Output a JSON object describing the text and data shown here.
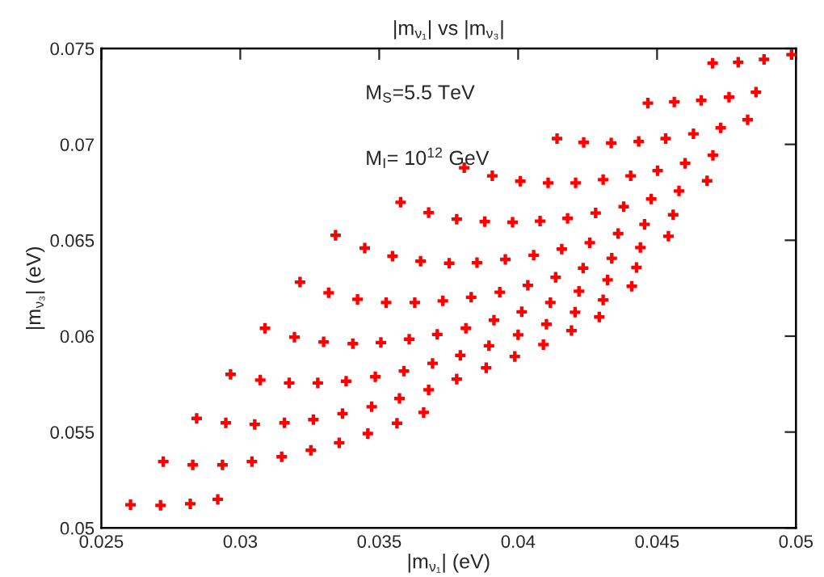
{
  "chart_data": {
    "type": "scatter",
    "title": "|m$_{ν₁}$| vs |m$_{ν₃}$|",
    "xlabel": "|m$_{ν₁}$| (eV)",
    "ylabel": "|m$_{ν₃}$| (eV)",
    "annotations": [
      "M$_{S}$=5.5 TeV",
      "M$_{I}$= 10$^{12}$ GeV"
    ],
    "xlim": [
      0.025,
      0.05
    ],
    "xticks": [
      0.025,
      0.03,
      0.035,
      0.04,
      0.045,
      0.05
    ],
    "ylim": [
      0.05,
      0.075
    ],
    "yticks": [
      0.05,
      0.055,
      0.06,
      0.065,
      0.07,
      0.075
    ],
    "grid": false,
    "legend": false,
    "marker": "cross",
    "series": [
      {
        "color": "#ff0000",
        "x": [
          0.02605,
          0.02713,
          0.0282,
          0.02919,
          0.02723,
          0.02829,
          0.02936,
          0.03042,
          0.03149,
          0.03254,
          0.03356,
          0.03459,
          0.03564,
          0.0366,
          0.02843,
          0.02948,
          0.03052,
          0.03159,
          0.03263,
          0.03368,
          0.03473,
          0.03573,
          0.03678,
          0.02965,
          0.03072,
          0.03176,
          0.03279,
          0.03381,
          0.03486,
          0.03589,
          0.03692,
          0.03089,
          0.03195,
          0.033,
          0.03405,
          0.03506,
          0.03608,
          0.03709,
          0.03215,
          0.03318,
          0.03422,
          0.03525,
          0.03628,
          0.03729,
          0.03831,
          0.03934,
          0.04035,
          0.04135,
          0.04322,
          0.04409,
          0.04219,
          0.04116,
          0.04306,
          0.04013,
          0.04205,
          0.04292,
          0.03913,
          0.04102,
          0.03812,
          0.04192,
          0.04,
          0.03895,
          0.04091,
          0.03792,
          0.03988,
          0.03885,
          0.03779,
          0.03577,
          0.03678,
          0.03343,
          0.03448,
          0.03548,
          0.03649,
          0.047,
          0.04792,
          0.04885,
          0.04984,
          0.04467,
          0.04562,
          0.04659,
          0.04759,
          0.04856,
          0.04826,
          0.04729,
          0.04631,
          0.04531,
          0.04434,
          0.04335,
          0.04236,
          0.0414,
          0.04701,
          0.04601,
          0.04502,
          0.04405,
          0.04306,
          0.04207,
          0.04108,
          0.04008,
          0.03907,
          0.03806,
          0.0468,
          0.04579,
          0.04479,
          0.0438,
          0.04279,
          0.04178,
          0.04079,
          0.0398,
          0.0388,
          0.03779,
          0.04558,
          0.04455,
          0.0436,
          0.04258,
          0.04157,
          0.04056,
          0.03954,
          0.03852,
          0.03752,
          0.04541,
          0.0444,
          0.04337,
          0.04234,
          0.04426
        ],
        "values": [
          0.05121,
          0.05118,
          0.05126,
          0.05149,
          0.05346,
          0.05329,
          0.05329,
          0.05346,
          0.05371,
          0.05405,
          0.05444,
          0.05492,
          0.05546,
          0.05602,
          0.05571,
          0.05548,
          0.0554,
          0.05548,
          0.05565,
          0.05596,
          0.05632,
          0.05675,
          0.0572,
          0.05801,
          0.05771,
          0.05756,
          0.05756,
          0.05765,
          0.05788,
          0.05818,
          0.05858,
          0.06041,
          0.05995,
          0.0597,
          0.05961,
          0.05967,
          0.05984,
          0.06009,
          0.06282,
          0.06226,
          0.06192,
          0.06175,
          0.06175,
          0.06184,
          0.06203,
          0.06229,
          0.06265,
          0.06307,
          0.06293,
          0.0626,
          0.06234,
          0.06175,
          0.06189,
          0.06127,
          0.06125,
          0.061,
          0.06083,
          0.06062,
          0.06041,
          0.06029,
          0.06007,
          0.0595,
          0.05956,
          0.059,
          0.05894,
          0.05835,
          0.05776,
          0.06698,
          0.06644,
          0.06526,
          0.06459,
          0.06417,
          0.06391,
          0.07423,
          0.07428,
          0.07443,
          0.07468,
          0.07215,
          0.07221,
          0.07229,
          0.07246,
          0.07272,
          0.07128,
          0.07086,
          0.07055,
          0.0703,
          0.07015,
          0.07007,
          0.0701,
          0.0703,
          0.06943,
          0.06901,
          0.06863,
          0.06836,
          0.06816,
          0.06799,
          0.06799,
          0.06808,
          0.06836,
          0.06878,
          0.0681,
          0.06757,
          0.06715,
          0.06675,
          0.06642,
          0.06614,
          0.066,
          0.06594,
          0.06597,
          0.0661,
          0.06633,
          0.06583,
          0.06535,
          0.06487,
          0.06454,
          0.06422,
          0.064,
          0.06383,
          0.0638,
          0.06521,
          0.06462,
          0.06406,
          0.06355,
          0.06358
        ]
      }
    ]
  }
}
